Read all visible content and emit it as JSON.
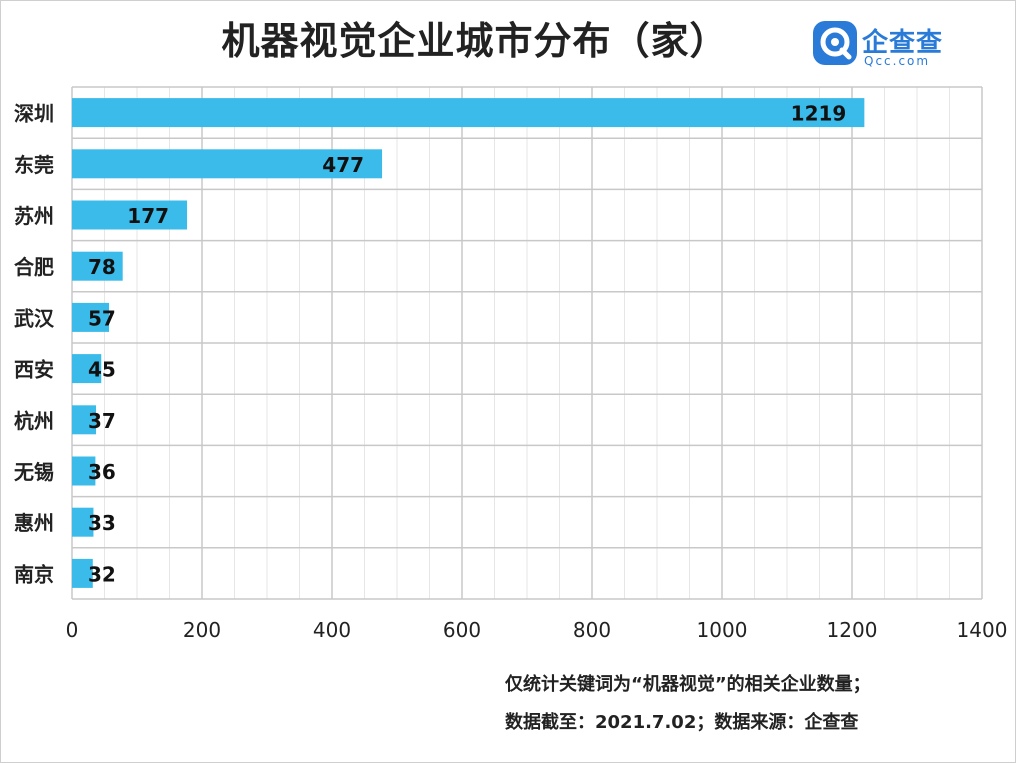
{
  "header": {
    "title": "机器视觉企业城市分布（家）"
  },
  "logo": {
    "name": "企查查",
    "domain": "Qcc.com",
    "icon": "qcc-logo-icon",
    "color": "#2a7bd8"
  },
  "colors": {
    "bar": "#3bbbe9",
    "grid_major": "#c8c8c8",
    "grid_minor": "#e6e6e6",
    "text": "#222222"
  },
  "notes": {
    "line1": "仅统计关键词为“机器视觉”的相关企业数量；",
    "line2": "数据截至：2021.7.02；数据来源：企查查"
  },
  "chart_data": {
    "type": "bar",
    "orientation": "horizontal",
    "title": "机器视觉企业城市分布（家）",
    "categories": [
      "深圳",
      "东莞",
      "苏州",
      "合肥",
      "武汉",
      "西安",
      "杭州",
      "无锡",
      "惠州",
      "南京"
    ],
    "values": [
      1219,
      477,
      177,
      78,
      57,
      45,
      37,
      36,
      33,
      32
    ],
    "xlim": [
      0,
      1400
    ],
    "xticks": [
      0,
      200,
      400,
      600,
      800,
      1000,
      1200,
      1400
    ],
    "xlabel": "",
    "ylabel": "",
    "grid": true,
    "data_labels": true,
    "legend": "none"
  }
}
